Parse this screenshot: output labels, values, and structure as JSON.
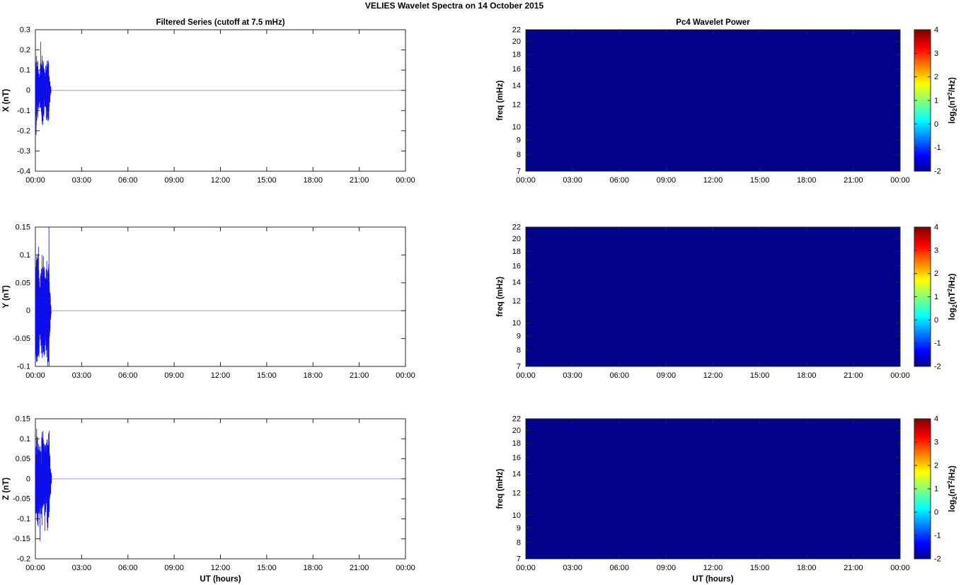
{
  "title": "VELIES Wavelet Spectra on 14 October  2015",
  "left_column_title": "Filtered Series (cutoff at 7.5 mHz)",
  "right_column_title": "Pc4 Wavelet Power",
  "colors": {
    "background": "#ffffff",
    "axis": "#262626",
    "tick_label": "#000000",
    "series_line": "#0d0dee",
    "series_tail": "#9a9af0",
    "spectrogram_fill": "#02028c",
    "jet_stops": [
      {
        "off": 0.0,
        "color": "#00008f"
      },
      {
        "off": 0.11,
        "color": "#0000ff"
      },
      {
        "off": 0.36,
        "color": "#00ffff"
      },
      {
        "off": 0.62,
        "color": "#ffff00"
      },
      {
        "off": 0.87,
        "color": "#ff0000"
      },
      {
        "off": 1.0,
        "color": "#800000"
      }
    ]
  },
  "x_axis": {
    "label": "UT (hours)",
    "tick_labels": [
      "00:00",
      "03:00",
      "06:00",
      "09:00",
      "12:00",
      "15:00",
      "18:00",
      "21:00",
      "00:00"
    ],
    "tick_hours": [
      0,
      3,
      6,
      9,
      12,
      15,
      18,
      21,
      24
    ],
    "range_hours": [
      0,
      24
    ]
  },
  "colorbar": {
    "colormap": "jet",
    "range": [
      -2,
      4
    ],
    "tick_values": [
      4,
      3,
      2,
      1,
      0,
      -1,
      -2
    ],
    "tick_labels": [
      "4",
      "3",
      "2",
      "1",
      "0",
      "-1",
      "-2"
    ],
    "label_parts": {
      "p1": "log",
      "sub": "2",
      "p2": "(nT",
      "sup": "2",
      "p3": "/Hz)"
    }
  },
  "chart_data": {
    "figure_title": "VELIES Wavelet Spectra on 14 October  2015",
    "description": "Three bandpass-filtered magnetometer components (X,Y,Z) with a noise burst from 00:00 to about 01:00 UT then zero, and three corresponding Pc4 wavelet power spectrograms that are uniformly at the colormap minimum (log2 power <= -2).",
    "rows": [
      {
        "timeseries": {
          "type": "line",
          "component": "X",
          "title": "Filtered Series (cutoff at 7.5 mHz)",
          "ylabel": "X (nT)",
          "ylim": [
            -0.4,
            0.3
          ],
          "ytick_values": [
            0.3,
            0.2,
            0.1,
            0,
            -0.1,
            -0.2,
            -0.3,
            -0.4
          ],
          "ytick_labels": [
            "0.3",
            "0.2",
            "0.1",
            "0",
            "-0.1",
            "-0.2",
            "-0.3",
            "-0.4"
          ],
          "baseline_value": 0,
          "burst": {
            "start_h": 0,
            "end_h": 1.02,
            "base_amp": 0.085,
            "seed": 7,
            "spikes": [
              {
                "t": 0.05,
                "v": -0.22
              },
              {
                "t": 0.07,
                "v": 0.17
              },
              {
                "t": 0.35,
                "v": 0.24
              },
              {
                "t": 0.55,
                "v": -0.13
              },
              {
                "t": 0.75,
                "v": 0.12
              }
            ]
          }
        },
        "spectrogram": {
          "type": "heatmap",
          "title": "Pc4 Wavelet Power",
          "ylabel": "freq (mHz)",
          "yscale": "log",
          "ylim_mhz": [
            7,
            22
          ],
          "ytick_values": [
            22,
            20,
            18,
            16,
            14,
            12,
            10,
            9,
            8,
            7
          ],
          "ytick_labels": [
            "22",
            "20",
            "18",
            "16",
            "14",
            "12",
            "10",
            "9",
            "8",
            "7"
          ],
          "uniform_power_log2": -2
        }
      },
      {
        "timeseries": {
          "type": "line",
          "component": "Y",
          "ylabel": "Y (nT)",
          "ylim": [
            -0.1,
            0.15
          ],
          "ytick_values": [
            0.15,
            0.1,
            0.05,
            0,
            -0.05,
            -0.1
          ],
          "ytick_labels": [
            "0.15",
            "0.1",
            "0.05",
            "0",
            "-0.05",
            "-0.1"
          ],
          "baseline_value": 0,
          "burst": {
            "start_h": 0,
            "end_h": 1.02,
            "base_amp": 0.052,
            "seed": 13,
            "spikes": [
              {
                "t": 0.06,
                "v": 0.09
              },
              {
                "t": 0.2,
                "v": 0.115
              },
              {
                "t": 0.45,
                "v": -0.085
              },
              {
                "t": 0.88,
                "v": 0.4
              },
              {
                "t": 0.885,
                "v": -0.4
              }
            ]
          }
        },
        "spectrogram": {
          "type": "heatmap",
          "ylabel": "freq (mHz)",
          "yscale": "log",
          "ylim_mhz": [
            7,
            22
          ],
          "ytick_values": [
            22,
            20,
            18,
            16,
            14,
            12,
            10,
            9,
            8,
            7
          ],
          "ytick_labels": [
            "22",
            "20",
            "18",
            "16",
            "14",
            "12",
            "10",
            "9",
            "8",
            "7"
          ],
          "uniform_power_log2": -2
        }
      },
      {
        "timeseries": {
          "type": "line",
          "component": "Z",
          "ylabel": "Z (nT)",
          "ylim": [
            -0.2,
            0.15
          ],
          "ytick_values": [
            0.15,
            0.1,
            0.05,
            0,
            -0.05,
            -0.1,
            -0.15,
            -0.2
          ],
          "ytick_labels": [
            "0.15",
            "0.1",
            "0.05",
            "0",
            "-0.05",
            "-0.1",
            "-0.15",
            "-0.2"
          ],
          "baseline_value": 0,
          "burst": {
            "start_h": 0,
            "end_h": 1.05,
            "base_amp": 0.065,
            "seed": 29,
            "spikes": [
              {
                "t": 0.08,
                "v": 0.125
              },
              {
                "t": 0.3,
                "v": -0.155
              },
              {
                "t": 0.5,
                "v": 0.12
              },
              {
                "t": 0.62,
                "v": -0.13
              },
              {
                "t": 0.9,
                "v": 0.12
              }
            ]
          }
        },
        "spectrogram": {
          "type": "heatmap",
          "ylabel": "freq (mHz)",
          "yscale": "log",
          "ylim_mhz": [
            7,
            22
          ],
          "ytick_values": [
            22,
            20,
            18,
            16,
            14,
            12,
            10,
            9,
            8,
            7
          ],
          "ytick_labels": [
            "22",
            "20",
            "18",
            "16",
            "14",
            "12",
            "10",
            "9",
            "8",
            "7"
          ],
          "uniform_power_log2": -2
        }
      }
    ]
  }
}
